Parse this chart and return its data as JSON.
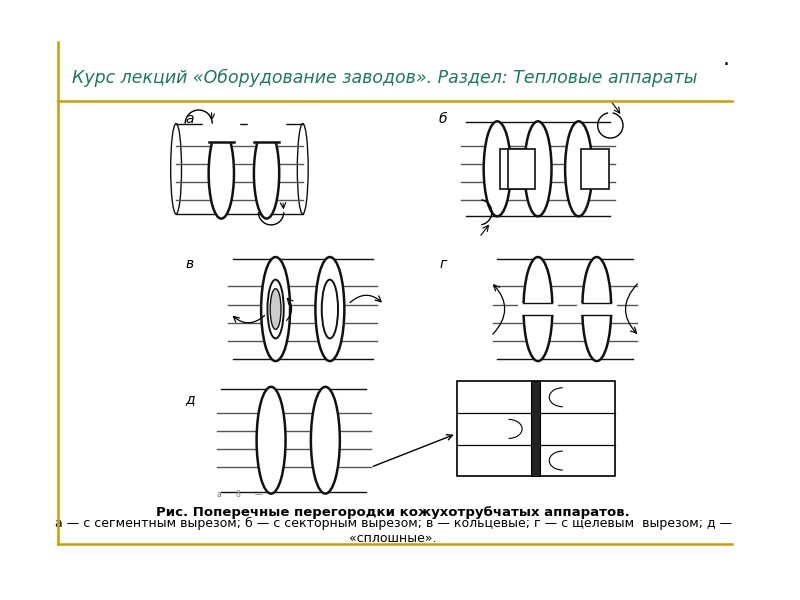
{
  "bg_color": "#ffffff",
  "border_color_gold": "#c8a000",
  "header_text": "Курс лекций «Оборудование заводов». Раздел: Тепловые аппараты",
  "header_color": "#1a7a60",
  "header_fontsize": 12.5,
  "caption_bold": "Рис. Поперечные перегородки кожухотрубчатых аппаратов.",
  "caption_normal": "а — с сегментным вырезом; б — с секторным вырезом; в — кольцевые; г — с щелевым  вырезом; д —\n«сплошные».",
  "caption_fontsize": 9.5,
  "labels": [
    "а",
    "б",
    "в",
    "г",
    "д"
  ],
  "label_fontsize": 10,
  "line_color": "#111111",
  "tube_color": "#555555"
}
